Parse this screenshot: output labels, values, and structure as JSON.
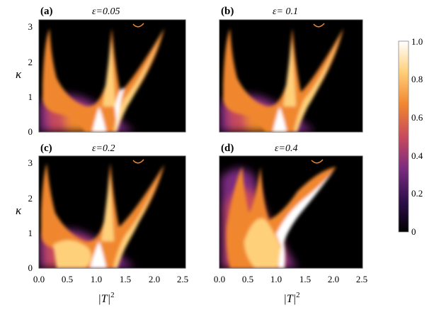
{
  "chart_data": [
    {
      "type": "heatmap",
      "label": "(a)",
      "title": "ε=0.05",
      "epsilon": 0.05,
      "xlabel": "",
      "ylabel": "κ",
      "xlim": [
        0,
        2.5
      ],
      "ylim": [
        0,
        3.2
      ],
      "yticks": [
        "0",
        "1",
        "2",
        "3"
      ],
      "xticks": []
    },
    {
      "type": "heatmap",
      "label": "(b)",
      "title": "ε= 0.1",
      "epsilon": 0.1,
      "xlabel": "",
      "ylabel": "",
      "xlim": [
        0,
        2.5
      ],
      "ylim": [
        0,
        3.2
      ],
      "yticks": [],
      "xticks": []
    },
    {
      "type": "heatmap",
      "label": "(c)",
      "title": "ε=0.2",
      "epsilon": 0.2,
      "xlabel": "|T|",
      "xlabel_sup": "2",
      "ylabel": "κ",
      "xlim": [
        0,
        2.5
      ],
      "ylim": [
        0,
        3.2
      ],
      "yticks": [
        "0",
        "1",
        "2",
        "3"
      ],
      "xticks": [
        "0.0",
        "0.5",
        "1.0",
        "1.5",
        "2.0",
        "2.5"
      ]
    },
    {
      "type": "heatmap",
      "label": "(d)",
      "title": "ε=0.4",
      "epsilon": 0.4,
      "xlabel": "|T|",
      "xlabel_sup": "2",
      "ylabel": "",
      "xlim": [
        0,
        2.5
      ],
      "ylim": [
        0,
        3.2
      ],
      "yticks": [],
      "xticks": [
        "0.0",
        "0.5",
        "1.0",
        "1.5",
        "2.0",
        "2.5"
      ]
    }
  ],
  "colorbar": {
    "ticks": [
      "1.0",
      "0.8",
      "0.6",
      "0.4",
      "0.2",
      "0"
    ],
    "range": [
      0,
      1
    ],
    "colors": [
      "#000000",
      "#2d0f4a",
      "#7a2b80",
      "#c74a5c",
      "#f0872f",
      "#ffd07a",
      "#ffffff"
    ]
  }
}
